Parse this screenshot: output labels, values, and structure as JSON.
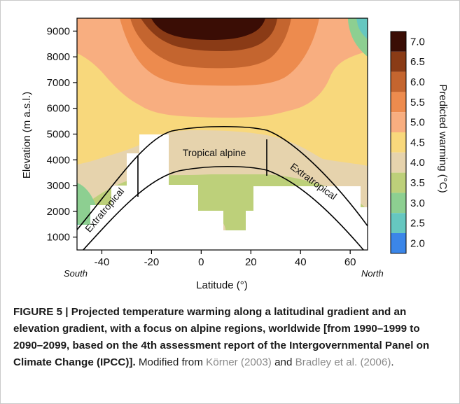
{
  "chart_data": {
    "type": "heatmap",
    "title": "",
    "xlabel": "Latitude (°)",
    "ylabel": "Elevation (m a.s.l.)",
    "x_ticks": [
      -40,
      -20,
      0,
      20,
      40,
      60
    ],
    "y_ticks": [
      1000,
      2000,
      3000,
      4000,
      5000,
      6000,
      7000,
      8000,
      9000
    ],
    "xlim": [
      -50,
      67
    ],
    "ylim": [
      500,
      9500
    ],
    "x_end_labels": {
      "left": "South",
      "right": "North"
    },
    "colorbar": {
      "label": "Predicted warming (°C)",
      "levels": [
        "7.0",
        "6.5",
        "6.0",
        "5.5",
        "5.0",
        "4.5",
        "4.0",
        "3.5",
        "3.0",
        "2.5",
        "2.0"
      ],
      "colors": [
        "#3a0d05",
        "#8a3b16",
        "#c4652f",
        "#ed8b4e",
        "#f8ae80",
        "#f8d87c",
        "#e6d3ad",
        "#bdd07a",
        "#8dcf91",
        "#66c7c0",
        "#3b86e8"
      ]
    },
    "region_labels": [
      "Extratropical",
      "Tropical alpine",
      "Extratropical"
    ]
  },
  "caption": {
    "bold": "FIGURE 5 | Projected temperature warming along a latitudinal gradient and an elevation gradient, with a focus on alpine regions, worldwide [from 1990–1999 to 2090–2099, based on the 4th assessment report of the Intergovernmental Panel on Climate Change (IPCC)].",
    "text1": " Modified from ",
    "ref1": "Körner (2003)",
    "text2": " and ",
    "ref2": "Bradley et al. (2006)",
    "text3": "."
  }
}
